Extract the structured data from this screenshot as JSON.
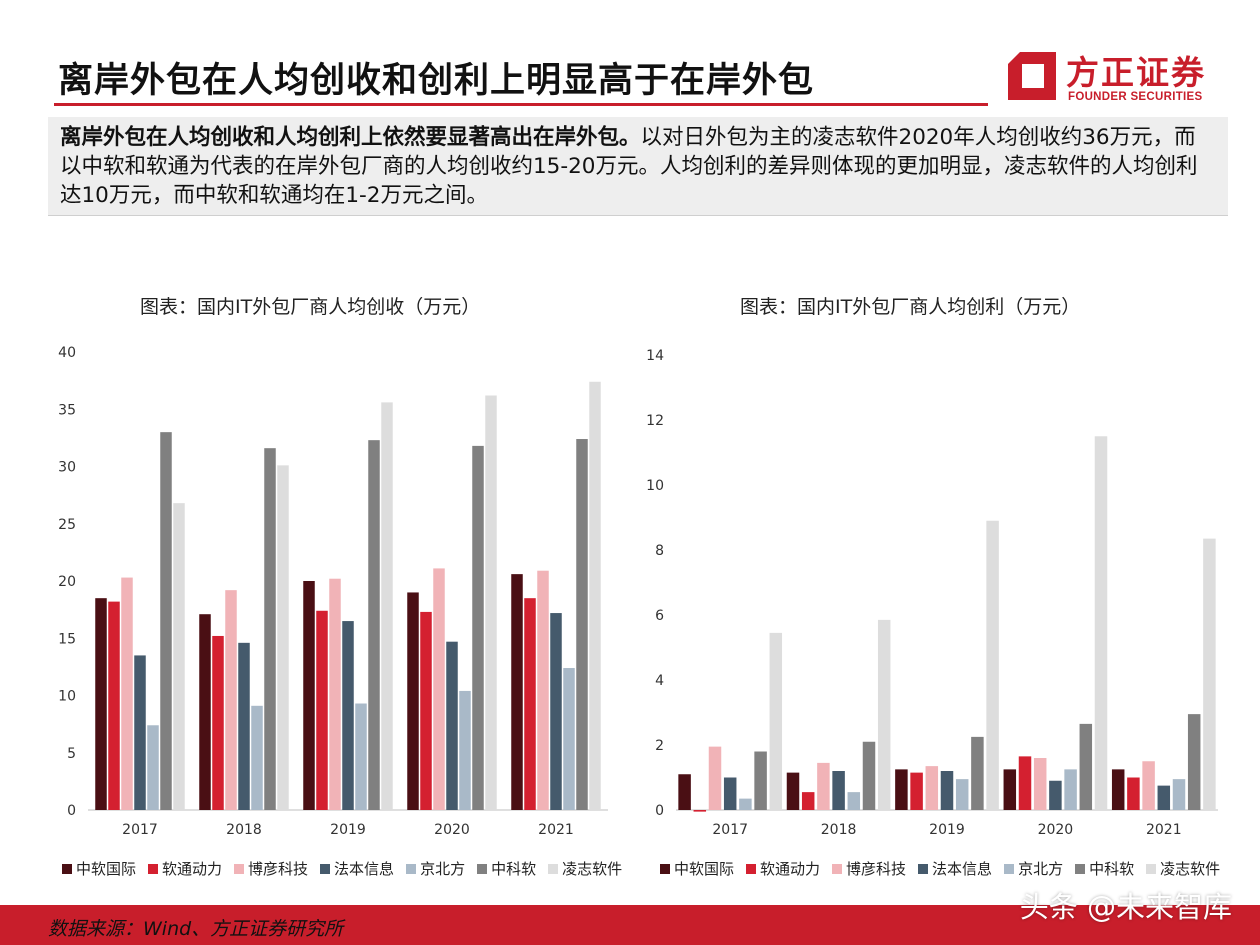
{
  "header": {
    "title": "离岸外包在人均创收和创利上明显高于在岸外包",
    "logo_cn": "方正证券",
    "logo_en": "FOUNDER SECURITIES"
  },
  "summary": {
    "bold": "离岸外包在人均创收和人均创利上依然要显著高出在岸外包。",
    "text": "以对日外包为主的凌志软件2020年人均创收约36万元，而以中软和软通为代表的在岸外包厂商的人均创收约15-20万元。人均创利的差异则体现的更加明显，凌志软件的人均创利达10万元，而中软和软通均在1-2万元之间。"
  },
  "colors": {
    "accent": "#c81e2b",
    "series": [
      "#4a0f14",
      "#d42030",
      "#f1b3b7",
      "#455a6c",
      "#a9b9c8",
      "#808080",
      "#dddddd"
    ]
  },
  "chart_data": [
    {
      "type": "bar",
      "title": "图表：国内IT外包厂商人均创收（万元）",
      "categories": [
        "2017",
        "2018",
        "2019",
        "2020",
        "2021"
      ],
      "ylim": [
        0,
        40
      ],
      "yticks": [
        0,
        5,
        10,
        15,
        20,
        25,
        30,
        35,
        40
      ],
      "grid": false,
      "legend": "bottom",
      "series": [
        {
          "name": "中软国际",
          "values": [
            18.5,
            17.1,
            20.0,
            19.0,
            20.6
          ]
        },
        {
          "name": "软通动力",
          "values": [
            18.2,
            15.2,
            17.4,
            17.3,
            18.5
          ]
        },
        {
          "name": "博彦科技",
          "values": [
            20.3,
            19.2,
            20.2,
            21.1,
            20.9
          ]
        },
        {
          "name": "法本信息",
          "values": [
            13.5,
            14.6,
            16.5,
            14.7,
            17.2
          ]
        },
        {
          "name": "京北方",
          "values": [
            7.4,
            9.1,
            9.3,
            10.4,
            12.4
          ]
        },
        {
          "name": "中科软",
          "values": [
            33.0,
            31.6,
            32.3,
            31.8,
            32.4
          ]
        },
        {
          "name": "凌志软件",
          "values": [
            26.8,
            30.1,
            35.6,
            36.2,
            37.4
          ]
        }
      ]
    },
    {
      "type": "bar",
      "title": "图表：国内IT外包厂商人均创利（万元）",
      "categories": [
        "2017",
        "2018",
        "2019",
        "2020",
        "2021"
      ],
      "ylim": [
        0,
        14
      ],
      "yticks": [
        0,
        2,
        4,
        6,
        8,
        10,
        12,
        14
      ],
      "grid": false,
      "legend": "bottom",
      "series": [
        {
          "name": "中软国际",
          "values": [
            1.1,
            1.15,
            1.25,
            1.25,
            1.25
          ]
        },
        {
          "name": "软通动力",
          "values": [
            -0.05,
            0.55,
            1.15,
            1.65,
            1.0
          ]
        },
        {
          "name": "博彦科技",
          "values": [
            1.95,
            1.45,
            1.35,
            1.6,
            1.5
          ]
        },
        {
          "name": "法本信息",
          "values": [
            1.0,
            1.2,
            1.2,
            0.9,
            0.75
          ]
        },
        {
          "name": "京北方",
          "values": [
            0.35,
            0.55,
            0.95,
            1.25,
            0.95
          ]
        },
        {
          "name": "中科软",
          "values": [
            1.8,
            2.1,
            2.25,
            2.65,
            2.95
          ]
        },
        {
          "name": "凌志软件",
          "values": [
            5.45,
            5.85,
            8.9,
            11.5,
            8.35
          ]
        }
      ]
    }
  ],
  "footer": {
    "source": "数据来源：Wind、方正证券研究所",
    "watermark": "头条 @未来智库"
  }
}
